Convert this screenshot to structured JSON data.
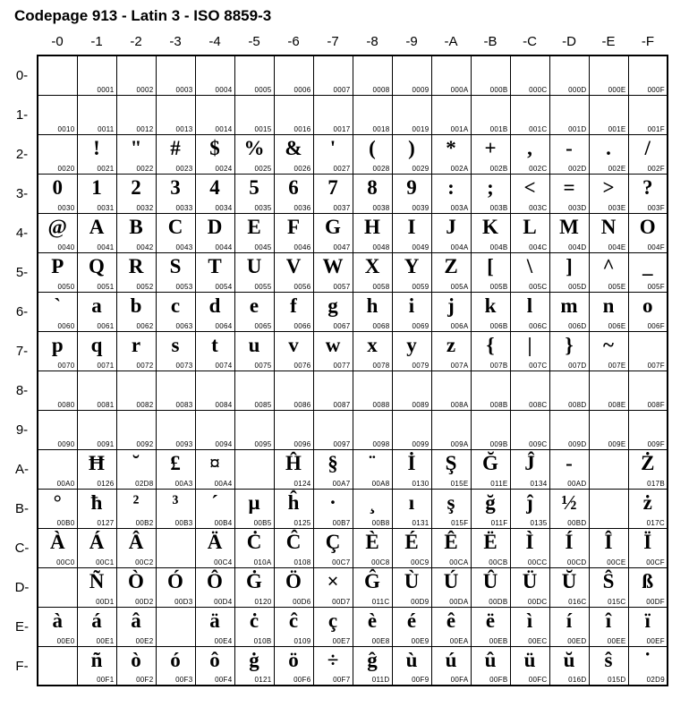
{
  "title": "Codepage 913 - Latin 3 - ISO 8859-3",
  "col_headers": [
    "-0",
    "-1",
    "-2",
    "-3",
    "-4",
    "-5",
    "-6",
    "-7",
    "-8",
    "-9",
    "-A",
    "-B",
    "-C",
    "-D",
    "-E",
    "-F"
  ],
  "row_headers": [
    "0-",
    "1-",
    "2-",
    "3-",
    "4-",
    "5-",
    "6-",
    "7-",
    "8-",
    "9-",
    "A-",
    "B-",
    "C-",
    "D-",
    "E-",
    "F-"
  ],
  "cells": [
    [
      {
        "g": "",
        "c": ""
      },
      {
        "g": "",
        "c": "0001"
      },
      {
        "g": "",
        "c": "0002"
      },
      {
        "g": "",
        "c": "0003"
      },
      {
        "g": "",
        "c": "0004"
      },
      {
        "g": "",
        "c": "0005"
      },
      {
        "g": "",
        "c": "0006"
      },
      {
        "g": "",
        "c": "0007"
      },
      {
        "g": "",
        "c": "0008"
      },
      {
        "g": "",
        "c": "0009"
      },
      {
        "g": "",
        "c": "000A"
      },
      {
        "g": "",
        "c": "000B"
      },
      {
        "g": "",
        "c": "000C"
      },
      {
        "g": "",
        "c": "000D"
      },
      {
        "g": "",
        "c": "000E"
      },
      {
        "g": "",
        "c": "000F"
      }
    ],
    [
      {
        "g": "",
        "c": "0010"
      },
      {
        "g": "",
        "c": "0011"
      },
      {
        "g": "",
        "c": "0012"
      },
      {
        "g": "",
        "c": "0013"
      },
      {
        "g": "",
        "c": "0014"
      },
      {
        "g": "",
        "c": "0015"
      },
      {
        "g": "",
        "c": "0016"
      },
      {
        "g": "",
        "c": "0017"
      },
      {
        "g": "",
        "c": "0018"
      },
      {
        "g": "",
        "c": "0019"
      },
      {
        "g": "",
        "c": "001A"
      },
      {
        "g": "",
        "c": "001B"
      },
      {
        "g": "",
        "c": "001C"
      },
      {
        "g": "",
        "c": "001D"
      },
      {
        "g": "",
        "c": "001E"
      },
      {
        "g": "",
        "c": "001F"
      }
    ],
    [
      {
        "g": "",
        "c": "0020"
      },
      {
        "g": "!",
        "c": "0021"
      },
      {
        "g": "\"",
        "c": "0022"
      },
      {
        "g": "#",
        "c": "0023"
      },
      {
        "g": "$",
        "c": "0024"
      },
      {
        "g": "%",
        "c": "0025"
      },
      {
        "g": "&",
        "c": "0026"
      },
      {
        "g": "'",
        "c": "0027"
      },
      {
        "g": "(",
        "c": "0028"
      },
      {
        "g": ")",
        "c": "0029"
      },
      {
        "g": "*",
        "c": "002A"
      },
      {
        "g": "+",
        "c": "002B"
      },
      {
        "g": ",",
        "c": "002C"
      },
      {
        "g": "-",
        "c": "002D"
      },
      {
        "g": ".",
        "c": "002E"
      },
      {
        "g": "/",
        "c": "002F"
      }
    ],
    [
      {
        "g": "0",
        "c": "0030"
      },
      {
        "g": "1",
        "c": "0031"
      },
      {
        "g": "2",
        "c": "0032"
      },
      {
        "g": "3",
        "c": "0033"
      },
      {
        "g": "4",
        "c": "0034"
      },
      {
        "g": "5",
        "c": "0035"
      },
      {
        "g": "6",
        "c": "0036"
      },
      {
        "g": "7",
        "c": "0037"
      },
      {
        "g": "8",
        "c": "0038"
      },
      {
        "g": "9",
        "c": "0039"
      },
      {
        "g": ":",
        "c": "003A"
      },
      {
        "g": ";",
        "c": "003B"
      },
      {
        "g": "<",
        "c": "003C"
      },
      {
        "g": "=",
        "c": "003D"
      },
      {
        "g": ">",
        "c": "003E"
      },
      {
        "g": "?",
        "c": "003F"
      }
    ],
    [
      {
        "g": "@",
        "c": "0040"
      },
      {
        "g": "A",
        "c": "0041"
      },
      {
        "g": "B",
        "c": "0042"
      },
      {
        "g": "C",
        "c": "0043"
      },
      {
        "g": "D",
        "c": "0044"
      },
      {
        "g": "E",
        "c": "0045"
      },
      {
        "g": "F",
        "c": "0046"
      },
      {
        "g": "G",
        "c": "0047"
      },
      {
        "g": "H",
        "c": "0048"
      },
      {
        "g": "I",
        "c": "0049"
      },
      {
        "g": "J",
        "c": "004A"
      },
      {
        "g": "K",
        "c": "004B"
      },
      {
        "g": "L",
        "c": "004C"
      },
      {
        "g": "M",
        "c": "004D"
      },
      {
        "g": "N",
        "c": "004E"
      },
      {
        "g": "O",
        "c": "004F"
      }
    ],
    [
      {
        "g": "P",
        "c": "0050"
      },
      {
        "g": "Q",
        "c": "0051"
      },
      {
        "g": "R",
        "c": "0052"
      },
      {
        "g": "S",
        "c": "0053"
      },
      {
        "g": "T",
        "c": "0054"
      },
      {
        "g": "U",
        "c": "0055"
      },
      {
        "g": "V",
        "c": "0056"
      },
      {
        "g": "W",
        "c": "0057"
      },
      {
        "g": "X",
        "c": "0058"
      },
      {
        "g": "Y",
        "c": "0059"
      },
      {
        "g": "Z",
        "c": "005A"
      },
      {
        "g": "[",
        "c": "005B"
      },
      {
        "g": "\\",
        "c": "005C"
      },
      {
        "g": "]",
        "c": "005D"
      },
      {
        "g": "^",
        "c": "005E"
      },
      {
        "g": "_",
        "c": "005F"
      }
    ],
    [
      {
        "g": "`",
        "c": "0060"
      },
      {
        "g": "a",
        "c": "0061"
      },
      {
        "g": "b",
        "c": "0062"
      },
      {
        "g": "c",
        "c": "0063"
      },
      {
        "g": "d",
        "c": "0064"
      },
      {
        "g": "e",
        "c": "0065"
      },
      {
        "g": "f",
        "c": "0066"
      },
      {
        "g": "g",
        "c": "0067"
      },
      {
        "g": "h",
        "c": "0068"
      },
      {
        "g": "i",
        "c": "0069"
      },
      {
        "g": "j",
        "c": "006A"
      },
      {
        "g": "k",
        "c": "006B"
      },
      {
        "g": "l",
        "c": "006C"
      },
      {
        "g": "m",
        "c": "006D"
      },
      {
        "g": "n",
        "c": "006E"
      },
      {
        "g": "o",
        "c": "006F"
      }
    ],
    [
      {
        "g": "p",
        "c": "0070"
      },
      {
        "g": "q",
        "c": "0071"
      },
      {
        "g": "r",
        "c": "0072"
      },
      {
        "g": "s",
        "c": "0073"
      },
      {
        "g": "t",
        "c": "0074"
      },
      {
        "g": "u",
        "c": "0075"
      },
      {
        "g": "v",
        "c": "0076"
      },
      {
        "g": "w",
        "c": "0077"
      },
      {
        "g": "x",
        "c": "0078"
      },
      {
        "g": "y",
        "c": "0079"
      },
      {
        "g": "z",
        "c": "007A"
      },
      {
        "g": "{",
        "c": "007B"
      },
      {
        "g": "|",
        "c": "007C"
      },
      {
        "g": "}",
        "c": "007D"
      },
      {
        "g": "~",
        "c": "007E"
      },
      {
        "g": "",
        "c": "007F"
      }
    ],
    [
      {
        "g": "",
        "c": "0080"
      },
      {
        "g": "",
        "c": "0081"
      },
      {
        "g": "",
        "c": "0082"
      },
      {
        "g": "",
        "c": "0083"
      },
      {
        "g": "",
        "c": "0084"
      },
      {
        "g": "",
        "c": "0085"
      },
      {
        "g": "",
        "c": "0086"
      },
      {
        "g": "",
        "c": "0087"
      },
      {
        "g": "",
        "c": "0088"
      },
      {
        "g": "",
        "c": "0089"
      },
      {
        "g": "",
        "c": "008A"
      },
      {
        "g": "",
        "c": "008B"
      },
      {
        "g": "",
        "c": "008C"
      },
      {
        "g": "",
        "c": "008D"
      },
      {
        "g": "",
        "c": "008E"
      },
      {
        "g": "",
        "c": "008F"
      }
    ],
    [
      {
        "g": "",
        "c": "0090"
      },
      {
        "g": "",
        "c": "0091"
      },
      {
        "g": "",
        "c": "0092"
      },
      {
        "g": "",
        "c": "0093"
      },
      {
        "g": "",
        "c": "0094"
      },
      {
        "g": "",
        "c": "0095"
      },
      {
        "g": "",
        "c": "0096"
      },
      {
        "g": "",
        "c": "0097"
      },
      {
        "g": "",
        "c": "0098"
      },
      {
        "g": "",
        "c": "0099"
      },
      {
        "g": "",
        "c": "009A"
      },
      {
        "g": "",
        "c": "009B"
      },
      {
        "g": "",
        "c": "009C"
      },
      {
        "g": "",
        "c": "009D"
      },
      {
        "g": "",
        "c": "009E"
      },
      {
        "g": "",
        "c": "009F"
      }
    ],
    [
      {
        "g": "",
        "c": "00A0"
      },
      {
        "g": "Ħ",
        "c": "0126"
      },
      {
        "g": "˘",
        "c": "02D8"
      },
      {
        "g": "£",
        "c": "00A3"
      },
      {
        "g": "¤",
        "c": "00A4"
      },
      {
        "g": "",
        "c": ""
      },
      {
        "g": "Ĥ",
        "c": "0124"
      },
      {
        "g": "§",
        "c": "00A7"
      },
      {
        "g": "¨",
        "c": "00A8"
      },
      {
        "g": "İ",
        "c": "0130"
      },
      {
        "g": "Ş",
        "c": "015E"
      },
      {
        "g": "Ğ",
        "c": "011E"
      },
      {
        "g": "Ĵ",
        "c": "0134"
      },
      {
        "g": "­-",
        "c": "00AD"
      },
      {
        "g": "",
        "c": ""
      },
      {
        "g": "Ż",
        "c": "017B"
      }
    ],
    [
      {
        "g": "°",
        "c": "00B0"
      },
      {
        "g": "ħ",
        "c": "0127"
      },
      {
        "g": "²",
        "c": "00B2"
      },
      {
        "g": "³",
        "c": "00B3"
      },
      {
        "g": "´",
        "c": "00B4"
      },
      {
        "g": "µ",
        "c": "00B5"
      },
      {
        "g": "ĥ",
        "c": "0125"
      },
      {
        "g": "·",
        "c": "00B7"
      },
      {
        "g": "¸",
        "c": "00B8"
      },
      {
        "g": "ı",
        "c": "0131"
      },
      {
        "g": "ş",
        "c": "015F"
      },
      {
        "g": "ğ",
        "c": "011F"
      },
      {
        "g": "ĵ",
        "c": "0135"
      },
      {
        "g": "½",
        "c": "00BD"
      },
      {
        "g": "",
        "c": ""
      },
      {
        "g": "ż",
        "c": "017C"
      }
    ],
    [
      {
        "g": "À",
        "c": "00C0"
      },
      {
        "g": "Á",
        "c": "00C1"
      },
      {
        "g": "Â",
        "c": "00C2"
      },
      {
        "g": "",
        "c": ""
      },
      {
        "g": "Ä",
        "c": "00C4"
      },
      {
        "g": "Ċ",
        "c": "010A"
      },
      {
        "g": "Ĉ",
        "c": "0108"
      },
      {
        "g": "Ç",
        "c": "00C7"
      },
      {
        "g": "È",
        "c": "00C8"
      },
      {
        "g": "É",
        "c": "00C9"
      },
      {
        "g": "Ê",
        "c": "00CA"
      },
      {
        "g": "Ë",
        "c": "00CB"
      },
      {
        "g": "Ì",
        "c": "00CC"
      },
      {
        "g": "Í",
        "c": "00CD"
      },
      {
        "g": "Î",
        "c": "00CE"
      },
      {
        "g": "Ï",
        "c": "00CF"
      }
    ],
    [
      {
        "g": "",
        "c": ""
      },
      {
        "g": "Ñ",
        "c": "00D1"
      },
      {
        "g": "Ò",
        "c": "00D2"
      },
      {
        "g": "Ó",
        "c": "00D3"
      },
      {
        "g": "Ô",
        "c": "00D4"
      },
      {
        "g": "Ġ",
        "c": "0120"
      },
      {
        "g": "Ö",
        "c": "00D6"
      },
      {
        "g": "×",
        "c": "00D7"
      },
      {
        "g": "Ĝ",
        "c": "011C"
      },
      {
        "g": "Ù",
        "c": "00D9"
      },
      {
        "g": "Ú",
        "c": "00DA"
      },
      {
        "g": "Û",
        "c": "00DB"
      },
      {
        "g": "Ü",
        "c": "00DC"
      },
      {
        "g": "Ŭ",
        "c": "016C"
      },
      {
        "g": "Ŝ",
        "c": "015C"
      },
      {
        "g": "ß",
        "c": "00DF"
      }
    ],
    [
      {
        "g": "à",
        "c": "00E0"
      },
      {
        "g": "á",
        "c": "00E1"
      },
      {
        "g": "â",
        "c": "00E2"
      },
      {
        "g": "",
        "c": ""
      },
      {
        "g": "ä",
        "c": "00E4"
      },
      {
        "g": "ċ",
        "c": "010B"
      },
      {
        "g": "ĉ",
        "c": "0109"
      },
      {
        "g": "ç",
        "c": "00E7"
      },
      {
        "g": "è",
        "c": "00E8"
      },
      {
        "g": "é",
        "c": "00E9"
      },
      {
        "g": "ê",
        "c": "00EA"
      },
      {
        "g": "ë",
        "c": "00EB"
      },
      {
        "g": "ì",
        "c": "00EC"
      },
      {
        "g": "í",
        "c": "00ED"
      },
      {
        "g": "î",
        "c": "00EE"
      },
      {
        "g": "ï",
        "c": "00EF"
      }
    ],
    [
      {
        "g": "",
        "c": ""
      },
      {
        "g": "ñ",
        "c": "00F1"
      },
      {
        "g": "ò",
        "c": "00F2"
      },
      {
        "g": "ó",
        "c": "00F3"
      },
      {
        "g": "ô",
        "c": "00F4"
      },
      {
        "g": "ġ",
        "c": "0121"
      },
      {
        "g": "ö",
        "c": "00F6"
      },
      {
        "g": "÷",
        "c": "00F7"
      },
      {
        "g": "ĝ",
        "c": "011D"
      },
      {
        "g": "ù",
        "c": "00F9"
      },
      {
        "g": "ú",
        "c": "00FA"
      },
      {
        "g": "û",
        "c": "00FB"
      },
      {
        "g": "ü",
        "c": "00FC"
      },
      {
        "g": "ŭ",
        "c": "016D"
      },
      {
        "g": "ŝ",
        "c": "015D"
      },
      {
        "g": "˙",
        "c": "02D9"
      }
    ]
  ]
}
